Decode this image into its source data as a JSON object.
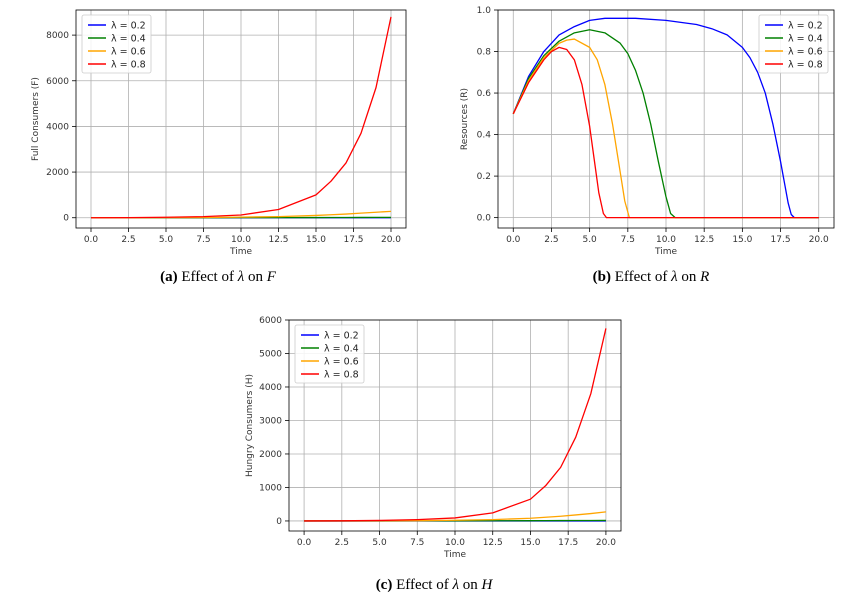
{
  "chart_data": [
    {
      "id": "a",
      "type": "line",
      "caption": {
        "letter": "(a)",
        "text": " Effect of ",
        "sym": "λ",
        "mid": " on ",
        "var": "F"
      },
      "xlabel": "Time",
      "ylabel": "Full Consumers (F)",
      "xlim": [
        -1,
        21
      ],
      "ylim": [
        -450,
        9100
      ],
      "xticks": [
        0.0,
        2.5,
        5.0,
        7.5,
        10.0,
        12.5,
        15.0,
        17.5,
        20.0
      ],
      "xtick_labels": [
        "0.0",
        "2.5",
        "5.0",
        "7.5",
        "10.0",
        "12.5",
        "15.0",
        "17.5",
        "20.0"
      ],
      "yticks": [
        0,
        2000,
        4000,
        6000,
        8000
      ],
      "ytick_labels": [
        "0",
        "2000",
        "4000",
        "6000",
        "8000"
      ],
      "grid": true,
      "legend": "top-left",
      "x": [
        0,
        2.5,
        5,
        7.5,
        10,
        12.5,
        15,
        16,
        17,
        18,
        19,
        20
      ],
      "series": [
        {
          "name": "λ = 0.2",
          "color": "#0000ff",
          "values": [
            0,
            0,
            0,
            0,
            0,
            0,
            0,
            0,
            0,
            0,
            0,
            0
          ]
        },
        {
          "name": "λ = 0.4",
          "color": "#008000",
          "values": [
            0,
            0,
            1,
            2,
            3,
            5,
            8,
            10,
            11,
            13,
            14,
            16
          ]
        },
        {
          "name": "λ = 0.6",
          "color": "#ffa500",
          "values": [
            0,
            1,
            4,
            10,
            25,
            50,
            100,
            130,
            160,
            200,
            240,
            280
          ]
        },
        {
          "name": "λ = 0.8",
          "color": "#ff0000",
          "values": [
            0,
            5,
            20,
            50,
            120,
            360,
            1000,
            1600,
            2400,
            3700,
            5700,
            8800
          ]
        }
      ]
    },
    {
      "id": "b",
      "type": "line",
      "caption": {
        "letter": "(b)",
        "text": " Effect of ",
        "sym": "λ",
        "mid": " on ",
        "var": "R"
      },
      "xlabel": "Time",
      "ylabel": "Resources (R)",
      "xlim": [
        -1,
        21
      ],
      "ylim": [
        -0.05,
        1.0
      ],
      "xticks": [
        0.0,
        2.5,
        5.0,
        7.5,
        10.0,
        12.5,
        15.0,
        17.5,
        20.0
      ],
      "xtick_labels": [
        "0.0",
        "2.5",
        "5.0",
        "7.5",
        "10.0",
        "12.5",
        "15.0",
        "17.5",
        "20.0"
      ],
      "yticks": [
        0.0,
        0.2,
        0.4,
        0.6,
        0.8,
        1.0
      ],
      "ytick_labels": [
        "0.0",
        "0.2",
        "0.4",
        "0.6",
        "0.8",
        "1.0"
      ],
      "grid": true,
      "legend": "top-right",
      "series": [
        {
          "name": "λ = 0.2",
          "color": "#0000ff",
          "x": [
            0,
            1,
            2,
            3,
            4,
            5,
            6,
            7,
            8,
            10,
            12,
            13,
            14,
            15,
            15.5,
            16,
            16.5,
            17,
            17.5,
            17.8,
            18,
            18.2,
            18.4,
            20
          ],
          "values": [
            0.5,
            0.68,
            0.8,
            0.88,
            0.92,
            0.95,
            0.96,
            0.96,
            0.96,
            0.95,
            0.93,
            0.91,
            0.88,
            0.82,
            0.77,
            0.7,
            0.6,
            0.45,
            0.27,
            0.15,
            0.07,
            0.015,
            0.0,
            0.0
          ]
        },
        {
          "name": "λ = 0.4",
          "color": "#008000",
          "x": [
            0,
            1,
            2,
            3,
            4,
            5,
            6,
            7,
            7.5,
            8,
            8.5,
            9,
            9.5,
            10,
            10.3,
            10.6,
            20
          ],
          "values": [
            0.5,
            0.67,
            0.78,
            0.85,
            0.89,
            0.905,
            0.89,
            0.84,
            0.79,
            0.71,
            0.6,
            0.45,
            0.27,
            0.1,
            0.02,
            0.0,
            0.0
          ]
        },
        {
          "name": "λ = 0.6",
          "color": "#ffa500",
          "x": [
            0,
            1,
            2,
            3,
            3.5,
            4,
            5,
            5.5,
            6,
            6.5,
            7,
            7.3,
            7.6,
            20
          ],
          "values": [
            0.5,
            0.66,
            0.77,
            0.84,
            0.855,
            0.86,
            0.82,
            0.76,
            0.64,
            0.45,
            0.22,
            0.08,
            0.0,
            0.0
          ]
        },
        {
          "name": "λ = 0.8",
          "color": "#ff0000",
          "x": [
            0,
            1,
            2,
            2.5,
            3,
            3.5,
            4,
            4.5,
            5,
            5.3,
            5.6,
            5.9,
            6.1,
            20
          ],
          "values": [
            0.5,
            0.65,
            0.76,
            0.8,
            0.82,
            0.81,
            0.76,
            0.64,
            0.44,
            0.28,
            0.12,
            0.02,
            0.0,
            0.0
          ]
        }
      ]
    },
    {
      "id": "c",
      "type": "line",
      "caption": {
        "letter": "(c)",
        "text": " Effect of ",
        "sym": "λ",
        "mid": " on ",
        "var": "H"
      },
      "xlabel": "Time",
      "ylabel": "Hungry Consumers (H)",
      "xlim": [
        -1,
        21
      ],
      "ylim": [
        -300,
        6000
      ],
      "xticks": [
        0.0,
        2.5,
        5.0,
        7.5,
        10.0,
        12.5,
        15.0,
        17.5,
        20.0
      ],
      "xtick_labels": [
        "0.0",
        "2.5",
        "5.0",
        "7.5",
        "10.0",
        "12.5",
        "15.0",
        "17.5",
        "20.0"
      ],
      "yticks": [
        0,
        1000,
        2000,
        3000,
        4000,
        5000,
        6000
      ],
      "ytick_labels": [
        "0",
        "1000",
        "2000",
        "3000",
        "4000",
        "5000",
        "6000"
      ],
      "grid": true,
      "legend": "top-left",
      "x": [
        0,
        2.5,
        5,
        7.5,
        10,
        12.5,
        15,
        16,
        17,
        18,
        19,
        20
      ],
      "series": [
        {
          "name": "λ = 0.2",
          "color": "#0000ff",
          "values": [
            0,
            0,
            0,
            0,
            0,
            0,
            0,
            0,
            0,
            0,
            0,
            0
          ]
        },
        {
          "name": "λ = 0.4",
          "color": "#008000",
          "values": [
            0,
            0,
            1,
            2,
            3,
            5,
            8,
            10,
            11,
            13,
            14,
            16
          ]
        },
        {
          "name": "λ = 0.6",
          "color": "#ffa500",
          "values": [
            0,
            1,
            3,
            8,
            20,
            40,
            80,
            110,
            140,
            180,
            220,
            270
          ]
        },
        {
          "name": "λ = 0.8",
          "color": "#ff0000",
          "values": [
            0,
            4,
            15,
            40,
            90,
            240,
            650,
            1050,
            1600,
            2500,
            3800,
            5750
          ]
        }
      ]
    }
  ]
}
